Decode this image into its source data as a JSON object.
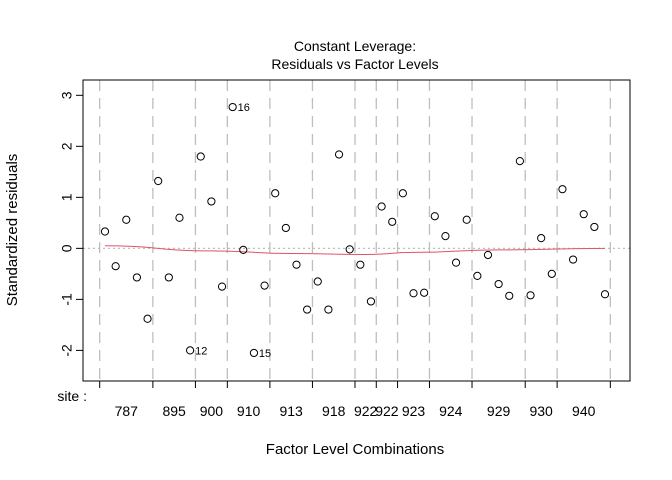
{
  "chart_data": {
    "type": "scatter",
    "title": [
      "Constant Leverage:",
      "Residuals vs Factor Levels"
    ],
    "xlabel": "Factor Level Combinations",
    "ylabel": "Standardized residuals",
    "factor_prefix": "site :",
    "ylim": [
      -2.6,
      3.3
    ],
    "yticks": [
      3,
      2,
      1,
      0,
      -1,
      -2
    ],
    "ytick_labels": [
      "3",
      "2",
      "1",
      "0",
      "-1",
      "-2"
    ],
    "zero_line": true,
    "group_labels": [
      "787",
      "895",
      "900",
      "910",
      "913",
      "918",
      "922",
      "922",
      "923",
      "924",
      "929",
      "930",
      "940"
    ],
    "groups": [
      {
        "values": [
          0.33,
          -0.35,
          0.56,
          -0.57,
          -1.38
        ]
      },
      {
        "values": [
          1.32,
          -0.57,
          0.6,
          -2.0
        ]
      },
      {
        "values": [
          1.8,
          0.92,
          -0.75
        ]
      },
      {
        "values": [
          2.77,
          -0.03,
          -2.05,
          -0.73
        ]
      },
      {
        "values": [
          1.08,
          0.4,
          -0.32,
          -1.2
        ]
      },
      {
        "values": [
          -0.65,
          -1.2,
          1.84,
          -0.02
        ]
      },
      {
        "values": [
          -0.32,
          -1.04
        ]
      },
      {
        "values": [
          0.82,
          0.52
        ]
      },
      {
        "values": [
          1.08,
          -0.88,
          -0.87
        ]
      },
      {
        "values": [
          0.63,
          0.24,
          -0.28,
          0.56
        ]
      },
      {
        "values": [
          -0.54,
          -0.13,
          -0.7,
          -0.93,
          1.71
        ]
      },
      {
        "values": [
          -0.92,
          0.2,
          -0.5
        ]
      },
      {
        "values": [
          1.16,
          -0.22,
          0.67,
          0.42,
          -0.9
        ]
      }
    ],
    "point_labels": [
      {
        "group": 1,
        "index": 3,
        "text": "12"
      },
      {
        "group": 3,
        "index": 0,
        "text": "16"
      },
      {
        "group": 3,
        "index": 2,
        "text": "15"
      }
    ],
    "smooth_line": {
      "x": [
        1,
        3,
        5,
        7,
        9,
        11,
        13
      ],
      "y": [
        0.05,
        -0.05,
        -0.1,
        -0.12,
        -0.08,
        -0.03,
        0.0
      ],
      "color": "#df536b"
    },
    "colors": {
      "points": "#000000",
      "box": "#000000",
      "separators": "#bebebe",
      "zero_line": "#bebebe"
    }
  }
}
